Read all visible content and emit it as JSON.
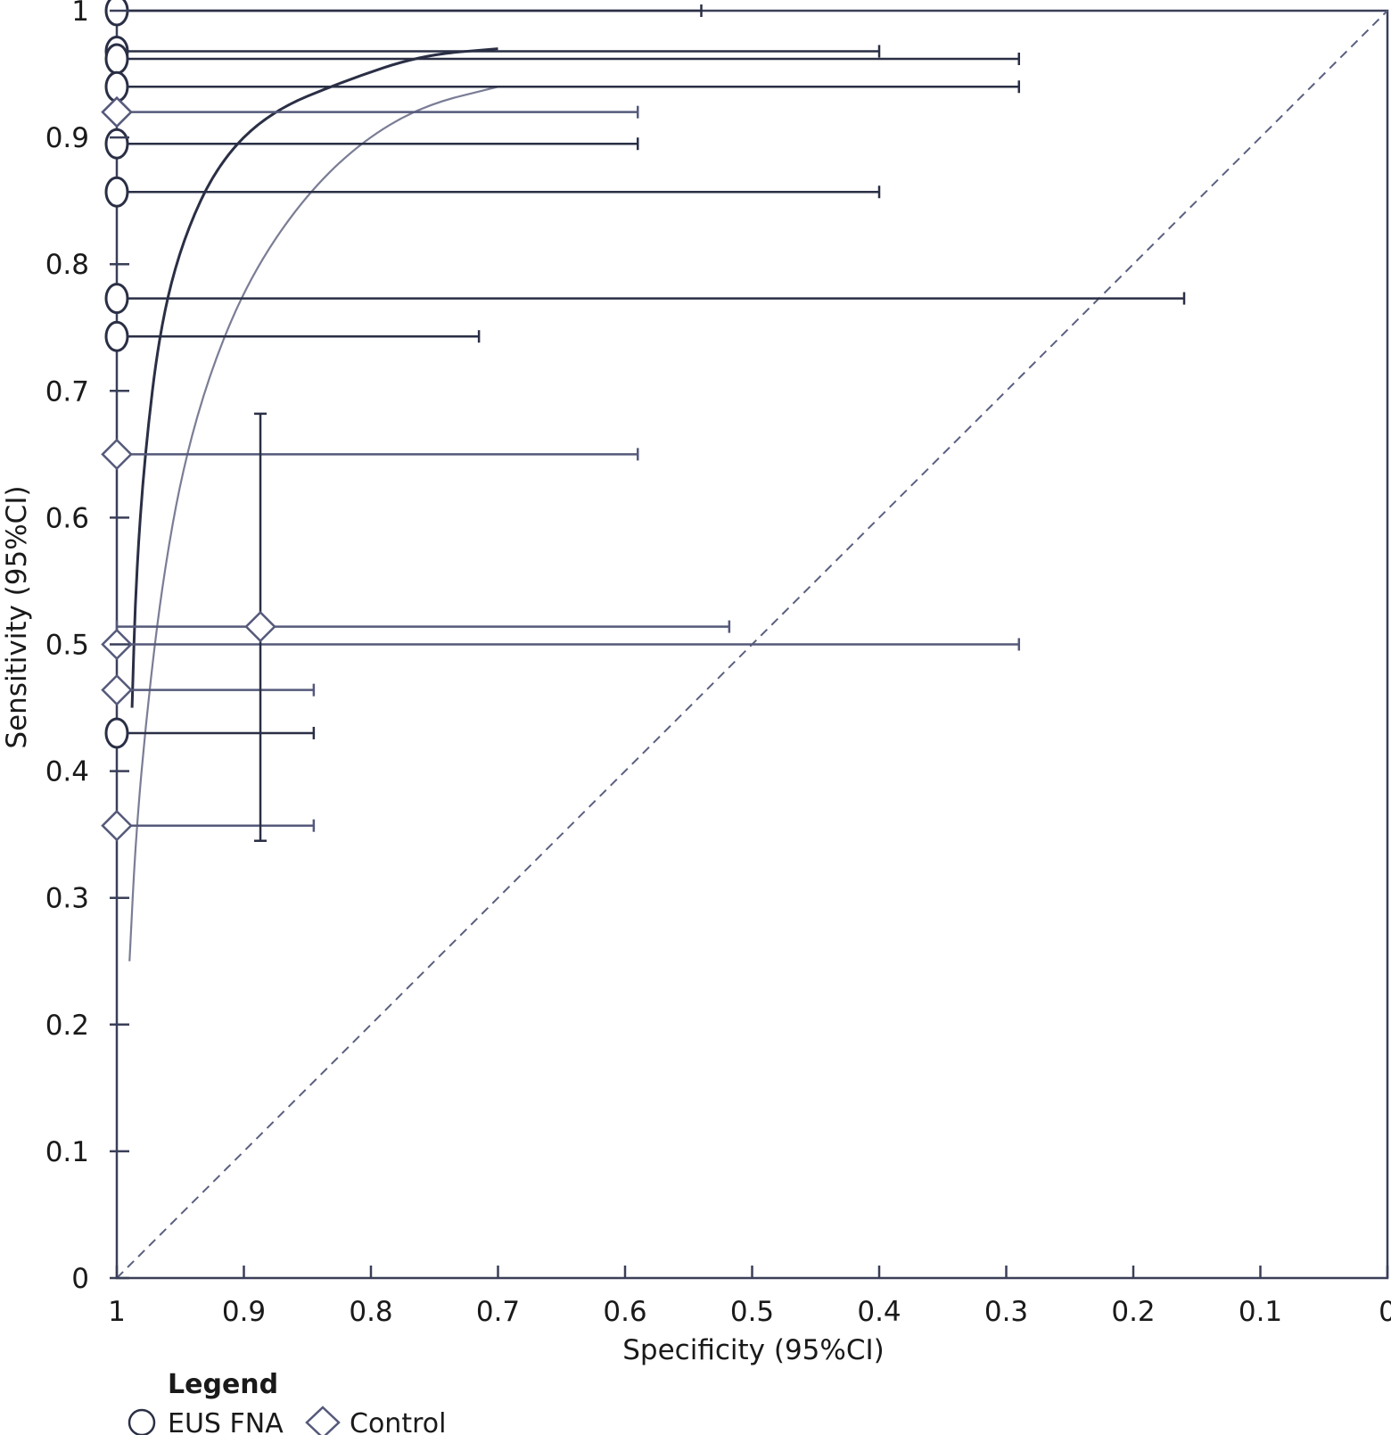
{
  "chart_data": {
    "type": "scatter",
    "xlabel": "Specificity (95%CI)",
    "ylabel": "Sensitivity (95%CI)",
    "x_reversed": true,
    "xlim": [
      0,
      1
    ],
    "ylim": [
      0,
      1
    ],
    "x_ticks": [
      "1",
      "0.9",
      "0.8",
      "0.7",
      "0.6",
      "0.5",
      "0.4",
      "0.3",
      "0.2",
      "0.1",
      "0"
    ],
    "y_ticks": [
      "0",
      "0.1",
      "0.2",
      "0.3",
      "0.4",
      "0.5",
      "0.6",
      "0.7",
      "0.8",
      "0.9",
      "1"
    ],
    "x_tick_values": [
      1,
      0.9,
      0.8,
      0.7,
      0.6,
      0.5,
      0.4,
      0.3,
      0.2,
      0.1,
      0
    ],
    "y_tick_values": [
      0,
      0.1,
      0.2,
      0.3,
      0.4,
      0.5,
      0.6,
      0.7,
      0.8,
      0.9,
      1
    ],
    "legend": {
      "title": "Legend",
      "placement": "bottom-left",
      "entries": [
        {
          "label": "EUS FNA",
          "marker": "circle"
        },
        {
          "label": "Control",
          "marker": "diamond"
        }
      ]
    },
    "series": [
      {
        "name": "EUS FNA",
        "marker": "circle",
        "color": "#2a2f45",
        "points": [
          {
            "spec": 1.0,
            "sens": 1.0,
            "spec_lo": 0.54
          },
          {
            "spec": 1.0,
            "sens": 0.968,
            "spec_lo": 0.4
          },
          {
            "spec": 1.0,
            "sens": 0.962,
            "spec_lo": 0.29
          },
          {
            "spec": 1.0,
            "sens": 0.94,
            "spec_lo": 0.29
          },
          {
            "spec": 1.0,
            "sens": 0.895,
            "spec_lo": 0.59
          },
          {
            "spec": 1.0,
            "sens": 0.857,
            "spec_lo": 0.4
          },
          {
            "spec": 1.0,
            "sens": 0.773,
            "spec_lo": 0.16
          },
          {
            "spec": 1.0,
            "sens": 0.743,
            "spec_lo": 0.715
          },
          {
            "spec": 1.0,
            "sens": 0.43,
            "spec_lo": 0.845
          }
        ]
      },
      {
        "name": "Control",
        "marker": "diamond",
        "color": "#55597a",
        "points": [
          {
            "spec": 1.0,
            "sens": 0.92,
            "spec_lo": 0.59
          },
          {
            "spec": 1.0,
            "sens": 0.65,
            "spec_lo": 0.59
          },
          {
            "spec": 1.0,
            "sens": 0.5,
            "spec_lo": 0.29
          },
          {
            "spec": 1.0,
            "sens": 0.464,
            "spec_lo": 0.845
          },
          {
            "spec": 1.0,
            "sens": 0.357,
            "spec_lo": 0.845
          },
          {
            "spec": 0.887,
            "sens": 0.514,
            "spec_lo": 0.518,
            "spec_hi": 1.0,
            "sens_lo": 0.345,
            "sens_hi": 0.682
          }
        ]
      }
    ],
    "sroc_curves": [
      {
        "series": "EUS FNA",
        "color": "#2a2f45",
        "points": [
          [
            0.988,
            0.45
          ],
          [
            0.985,
            0.55
          ],
          [
            0.978,
            0.65
          ],
          [
            0.966,
            0.75
          ],
          [
            0.948,
            0.82
          ],
          [
            0.92,
            0.88
          ],
          [
            0.88,
            0.92
          ],
          [
            0.82,
            0.945
          ],
          [
            0.76,
            0.965
          ],
          [
            0.7,
            0.97
          ]
        ]
      },
      {
        "series": "Control",
        "color": "#7a7d95",
        "points": [
          [
            0.99,
            0.25
          ],
          [
            0.985,
            0.35
          ],
          [
            0.976,
            0.45
          ],
          [
            0.964,
            0.55
          ],
          [
            0.948,
            0.64
          ],
          [
            0.925,
            0.72
          ],
          [
            0.895,
            0.79
          ],
          [
            0.855,
            0.85
          ],
          [
            0.81,
            0.895
          ],
          [
            0.76,
            0.925
          ],
          [
            0.7,
            0.94
          ]
        ]
      }
    ],
    "chance_line": {
      "from": [
        1,
        0
      ],
      "to": [
        0,
        1
      ],
      "style": "dashed"
    }
  }
}
